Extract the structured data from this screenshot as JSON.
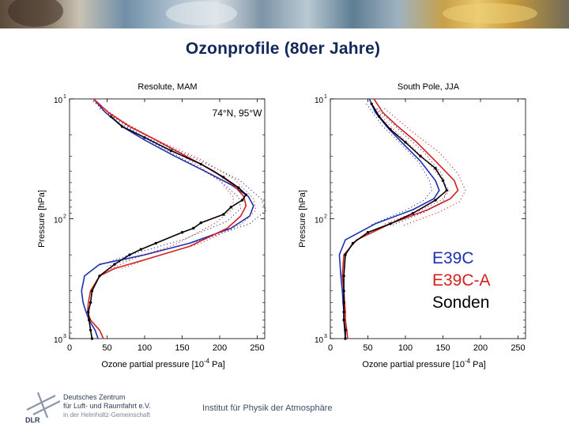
{
  "slide": {
    "title": "Ozonprofile (80er Jahre)",
    "footer_institute": "Institut für Physik der Atmosphäre",
    "logo_lines": [
      "Deutsches Zentrum",
      "für Luft- und Raumfahrt e.V.",
      "in der Helmholtz-Gemeinschaft"
    ],
    "logo_abbrev": "DLR"
  },
  "colors": {
    "title": "#12285a",
    "e39c": "#1f2fb0",
    "e39c_a": "#d42020",
    "sonden": "#000000"
  },
  "legend": {
    "entries": [
      "E39C",
      "E39C-A",
      "Sonden"
    ]
  },
  "chart_data": [
    {
      "type": "line",
      "title": "Resolute, MAM",
      "annotation": "74°N, 95°W",
      "xlabel": "Ozone partial pressure [10^-4 Pa]",
      "ylabel": "Pressure [hPa]",
      "xlim": [
        0,
        260
      ],
      "ylim": [
        1000,
        10
      ],
      "y_scale": "log",
      "x_ticks": [
        0,
        50,
        100,
        150,
        200,
        250
      ],
      "y_ticks": [
        {
          "value": 10,
          "label": "10",
          "exp": "1"
        },
        {
          "value": 100,
          "label": "10",
          "exp": "2"
        },
        {
          "value": 1000,
          "label": "10",
          "exp": "3"
        }
      ],
      "series": [
        {
          "name": "E39C",
          "style": "solid",
          "points": [
            [
              32,
              10
            ],
            [
              48,
              13
            ],
            [
              70,
              17
            ],
            [
              100,
              22
            ],
            [
              140,
              30
            ],
            [
              180,
              40
            ],
            [
              215,
              52
            ],
            [
              238,
              65
            ],
            [
              245,
              78
            ],
            [
              240,
              95
            ],
            [
              215,
              120
            ],
            [
              160,
              160
            ],
            [
              100,
              200
            ],
            [
              40,
              240
            ],
            [
              20,
              300
            ],
            [
              16,
              400
            ],
            [
              18,
              500
            ],
            [
              22,
              600
            ],
            [
              26,
              700
            ],
            [
              34,
              850
            ],
            [
              38,
              1000
            ]
          ]
        },
        {
          "name": "E39C-A",
          "style": "solid",
          "points": [
            [
              32,
              10
            ],
            [
              52,
              13
            ],
            [
              80,
              17
            ],
            [
              115,
              22
            ],
            [
              155,
              30
            ],
            [
              192,
              40
            ],
            [
              218,
              52
            ],
            [
              232,
              65
            ],
            [
              235,
              78
            ],
            [
              228,
              95
            ],
            [
              210,
              120
            ],
            [
              160,
              170
            ],
            [
              100,
              220
            ],
            [
              60,
              260
            ],
            [
              40,
              300
            ],
            [
              28,
              400
            ],
            [
              25,
              500
            ],
            [
              24,
              600
            ],
            [
              28,
              700
            ],
            [
              40,
              850
            ],
            [
              45,
              1000
            ]
          ]
        },
        {
          "name": "Sonden",
          "style": "solid-markers",
          "points": [
            [
              55,
              14
            ],
            [
              70,
              17
            ],
            [
              100,
              21
            ],
            [
              135,
              27
            ],
            [
              175,
              35
            ],
            [
              205,
              45
            ],
            [
              225,
              55
            ],
            [
              235,
              63
            ],
            [
              230,
              70
            ],
            [
              215,
              80
            ],
            [
              205,
              92
            ],
            [
              175,
              108
            ],
            [
              165,
              120
            ],
            [
              150,
              130
            ],
            [
              115,
              160
            ],
            [
              95,
              180
            ],
            [
              80,
              200
            ],
            [
              60,
              240
            ],
            [
              40,
              300
            ],
            [
              30,
              400
            ],
            [
              28,
              500
            ],
            [
              25,
              600
            ],
            [
              26,
              700
            ],
            [
              28,
              850
            ],
            [
              30,
              1000
            ]
          ]
        },
        {
          "name": "E39C spread upper",
          "style": "dotted",
          "color": "#1f2fb0",
          "points": [
            [
              40,
              12
            ],
            [
              95,
              20
            ],
            [
              170,
              32
            ],
            [
              225,
              47
            ],
            [
              255,
              68
            ],
            [
              262,
              85
            ],
            [
              240,
              110
            ],
            [
              170,
              155
            ],
            [
              90,
              205
            ],
            [
              50,
              250
            ]
          ]
        },
        {
          "name": "E39C spread lower",
          "style": "dotted",
          "color": "#1f2fb0",
          "points": [
            [
              28,
              10
            ],
            [
              60,
              15
            ],
            [
              110,
              23
            ],
            [
              160,
              34
            ],
            [
              200,
              48
            ],
            [
              225,
              66
            ],
            [
              228,
              82
            ],
            [
              210,
              105
            ],
            [
              150,
              150
            ],
            [
              80,
              200
            ],
            [
              35,
              250
            ]
          ]
        },
        {
          "name": "E39C-A spread upper",
          "style": "dotted",
          "color": "#d42020",
          "points": [
            [
              40,
              12
            ],
            [
              100,
              20
            ],
            [
              175,
              32
            ],
            [
              220,
              47
            ],
            [
              245,
              68
            ],
            [
              248,
              85
            ],
            [
              230,
              110
            ],
            [
              175,
              160
            ],
            [
              110,
              210
            ],
            [
              70,
              260
            ]
          ]
        },
        {
          "name": "E39C-A spread lower",
          "style": "dotted",
          "color": "#d42020",
          "points": [
            [
              28,
              10
            ],
            [
              68,
              15
            ],
            [
              120,
              23
            ],
            [
              165,
              34
            ],
            [
              200,
              48
            ],
            [
              218,
              66
            ],
            [
              218,
              82
            ],
            [
              195,
              108
            ],
            [
              140,
              165
            ],
            [
              85,
              215
            ],
            [
              50,
              270
            ]
          ]
        }
      ]
    },
    {
      "type": "line",
      "title": "South Pole, JJA",
      "xlabel": "Ozone partial pressure [10^-4 Pa]",
      "ylabel": "Pressure [hPa]",
      "xlim": [
        0,
        260
      ],
      "ylim": [
        1000,
        10
      ],
      "y_scale": "log",
      "x_ticks": [
        0,
        50,
        100,
        150,
        200,
        250
      ],
      "y_ticks": [
        {
          "value": 10,
          "label": "10",
          "exp": "1"
        },
        {
          "value": 100,
          "label": "10",
          "exp": "2"
        },
        {
          "value": 1000,
          "label": "10",
          "exp": "3"
        }
      ],
      "series": [
        {
          "name": "E39C",
          "style": "solid",
          "points": [
            [
              52,
              10
            ],
            [
              60,
              13
            ],
            [
              75,
              17
            ],
            [
              95,
              23
            ],
            [
              120,
              33
            ],
            [
              140,
              48
            ],
            [
              145,
              58
            ],
            [
              138,
              68
            ],
            [
              110,
              84
            ],
            [
              60,
              110
            ],
            [
              20,
              150
            ],
            [
              12,
              200
            ],
            [
              14,
              300
            ],
            [
              16,
              400
            ],
            [
              17,
              500
            ],
            [
              18,
              600
            ],
            [
              18,
              700
            ],
            [
              19,
              850
            ],
            [
              20,
              1000
            ]
          ]
        },
        {
          "name": "E39C-A",
          "style": "solid",
          "points": [
            [
              58,
              10
            ],
            [
              70,
              13
            ],
            [
              90,
              17
            ],
            [
              115,
              23
            ],
            [
              140,
              33
            ],
            [
              165,
              48
            ],
            [
              170,
              58
            ],
            [
              160,
              68
            ],
            [
              130,
              84
            ],
            [
              80,
              110
            ],
            [
              35,
              150
            ],
            [
              18,
              200
            ],
            [
              16,
              300
            ],
            [
              18,
              400
            ],
            [
              19,
              500
            ],
            [
              20,
              600
            ],
            [
              20,
              700
            ],
            [
              22,
              850
            ],
            [
              23,
              1000
            ]
          ]
        },
        {
          "name": "Sonden",
          "style": "solid-markers",
          "points": [
            [
              55,
              11
            ],
            [
              65,
              14
            ],
            [
              80,
              18
            ],
            [
              100,
              23
            ],
            [
              120,
              30
            ],
            [
              140,
              38
            ],
            [
              150,
              48
            ],
            [
              155,
              58
            ],
            [
              140,
              70
            ],
            [
              110,
              90
            ],
            [
              80,
              110
            ],
            [
              50,
              130
            ],
            [
              30,
              160
            ],
            [
              20,
              200
            ],
            [
              18,
              300
            ],
            [
              18,
              400
            ],
            [
              18,
              500
            ],
            [
              18,
              600
            ],
            [
              18,
              700
            ],
            [
              20,
              850
            ],
            [
              20,
              1000
            ]
          ]
        },
        {
          "name": "E39C spread upper",
          "style": "dotted",
          "color": "#1f2fb0",
          "points": [
            [
              62,
              12
            ],
            [
              95,
              19
            ],
            [
              125,
              28
            ],
            [
              148,
              42
            ],
            [
              155,
              58
            ],
            [
              150,
              72
            ],
            [
              125,
              88
            ],
            [
              80,
              115
            ]
          ]
        },
        {
          "name": "E39C spread lower",
          "style": "dotted",
          "color": "#1f2fb0",
          "points": [
            [
              48,
              11
            ],
            [
              70,
              17
            ],
            [
              95,
              24
            ],
            [
              118,
              34
            ],
            [
              132,
              48
            ],
            [
              135,
              58
            ],
            [
              125,
              70
            ],
            [
              100,
              85
            ],
            [
              55,
              112
            ]
          ]
        },
        {
          "name": "E39C-A spread upper",
          "style": "dotted",
          "color": "#d42020",
          "points": [
            [
              72,
              12
            ],
            [
              110,
              19
            ],
            [
              145,
              28
            ],
            [
              170,
              42
            ],
            [
              180,
              58
            ],
            [
              172,
              72
            ],
            [
              145,
              88
            ],
            [
              95,
              115
            ]
          ]
        },
        {
          "name": "E39C-A spread lower",
          "style": "dotted",
          "color": "#d42020",
          "points": [
            [
              55,
              11
            ],
            [
              80,
              17
            ],
            [
              105,
              24
            ],
            [
              130,
              34
            ],
            [
              150,
              48
            ],
            [
              158,
              58
            ],
            [
              148,
              70
            ],
            [
              120,
              85
            ],
            [
              70,
              112
            ]
          ]
        }
      ]
    }
  ]
}
